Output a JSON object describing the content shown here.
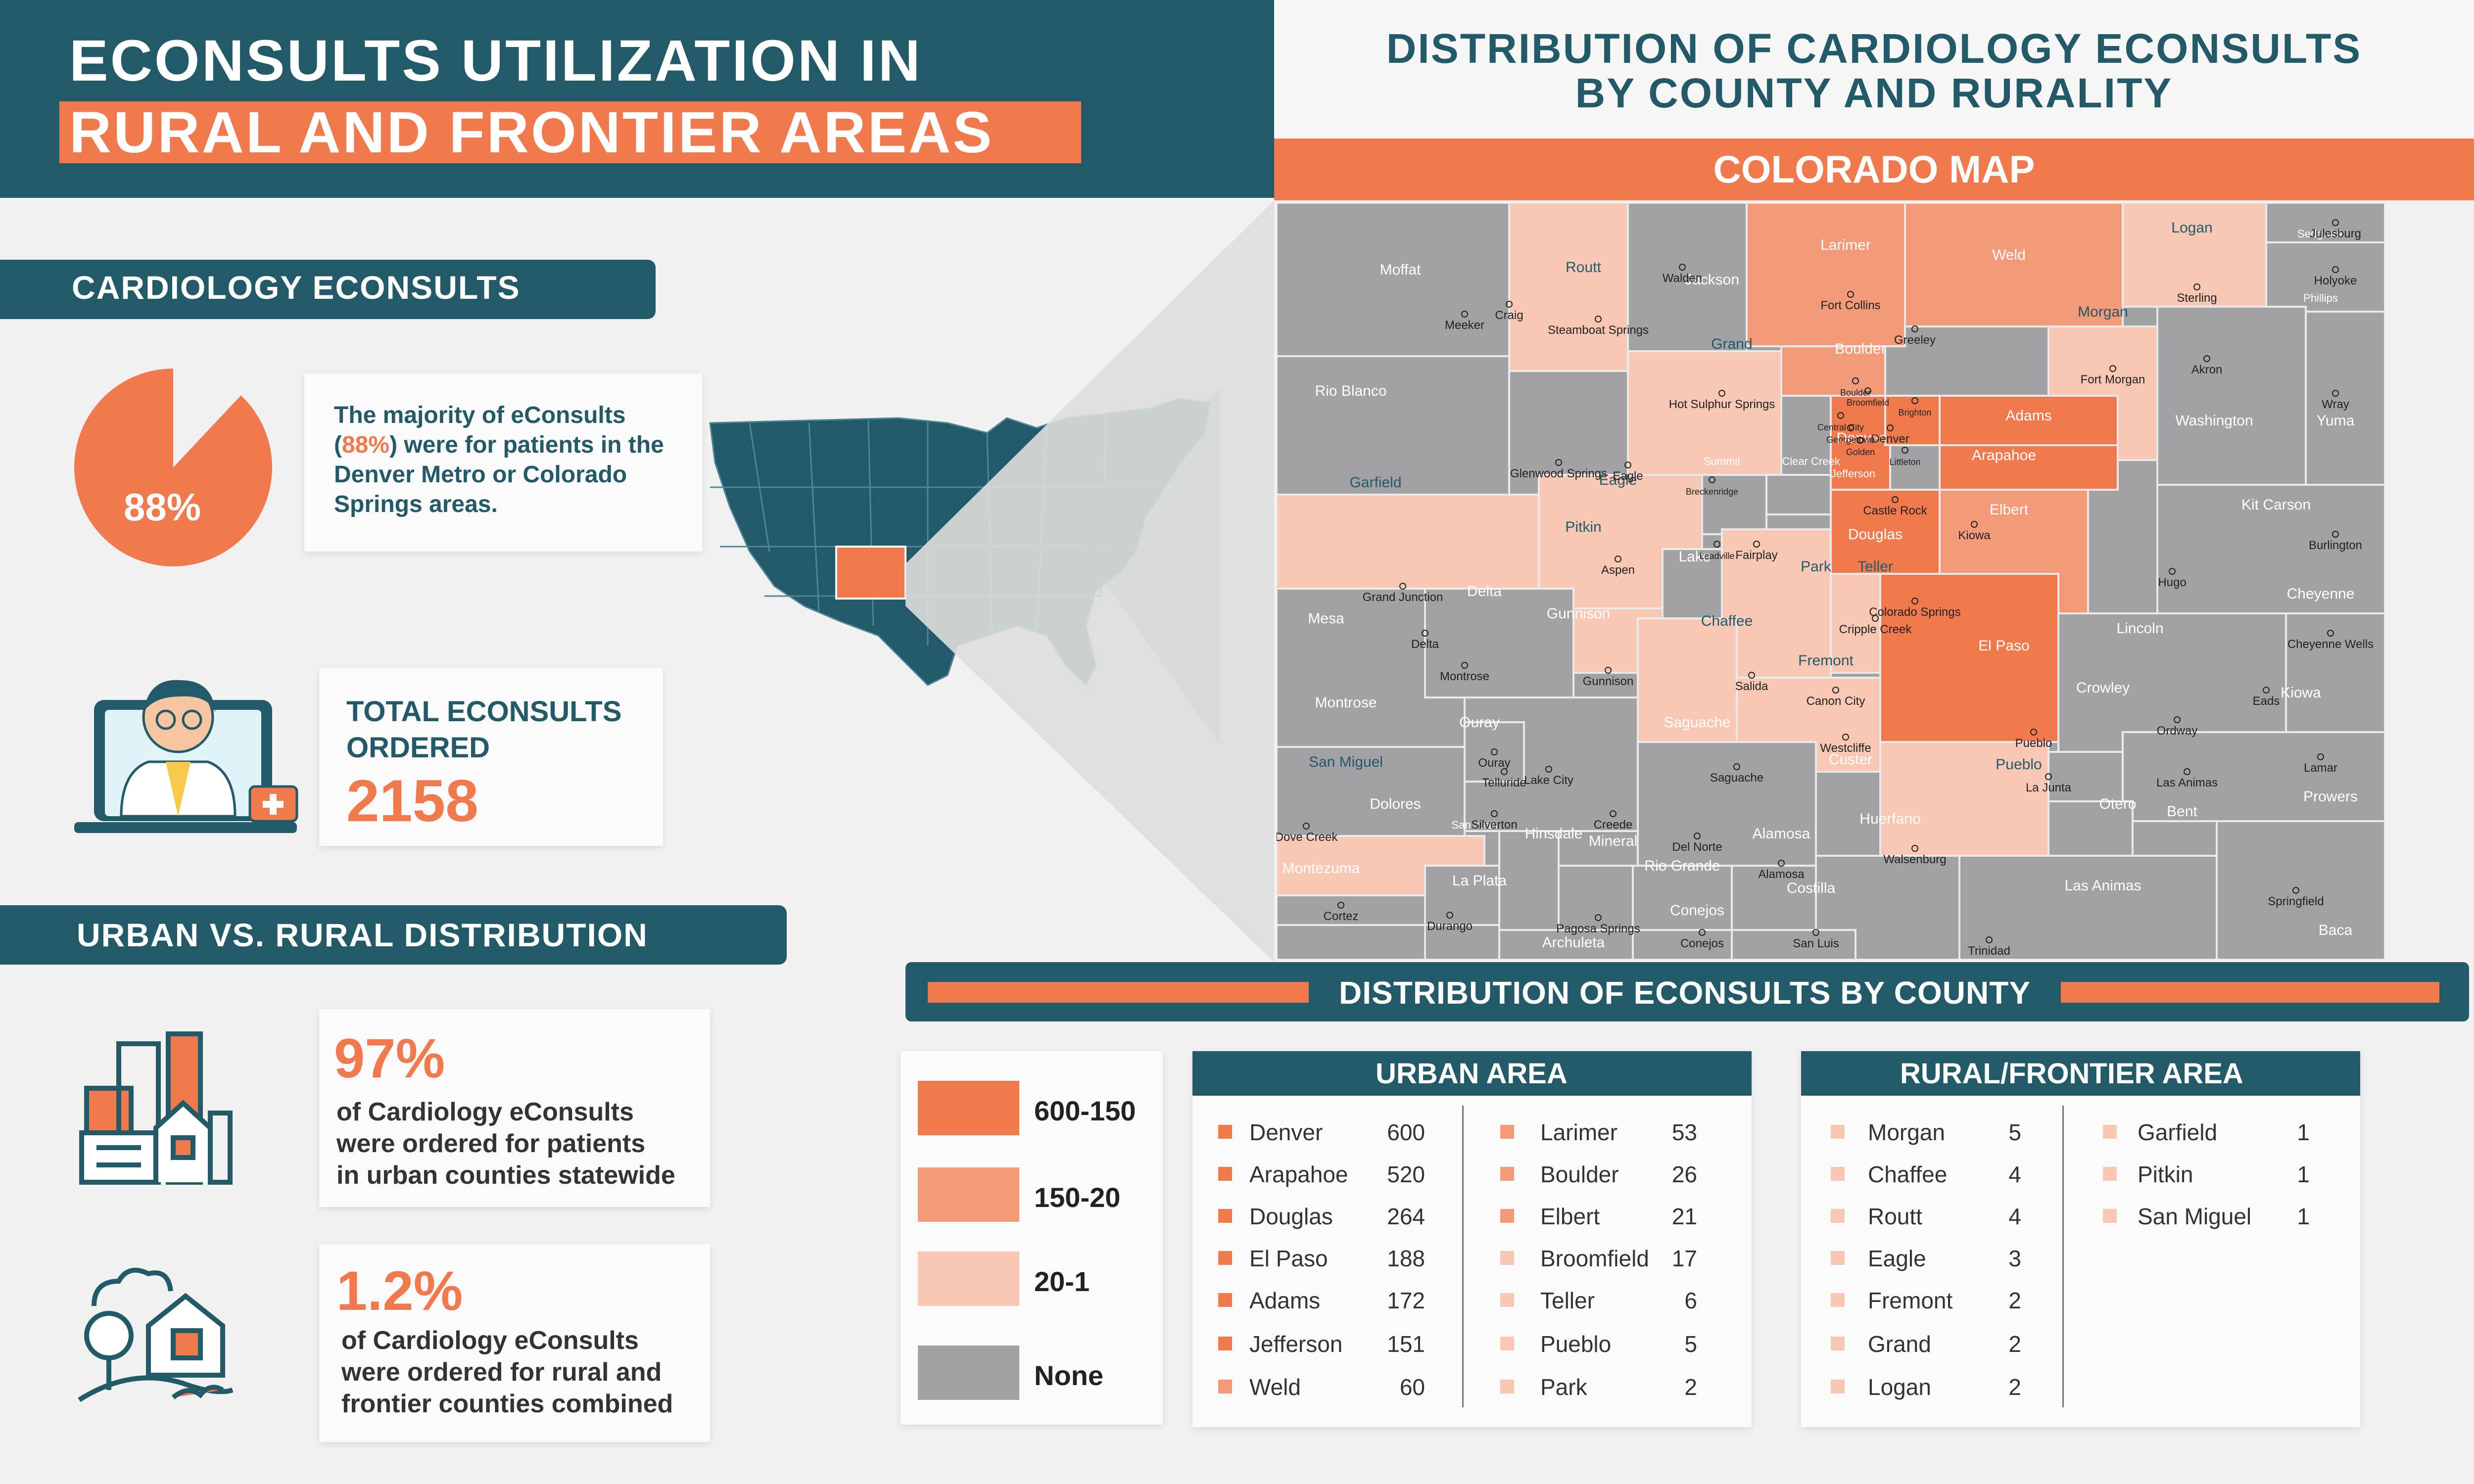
{
  "header": {
    "title_line1": "ECONSULTS UTILIZATION IN",
    "title_line2": "RURAL AND FRONTIER AREAS",
    "map_title_line1": "DISTRIBUTION OF CARDIOLOGY ECONSULTS",
    "map_title_line2": "BY COUNTY AND RURALITY",
    "map_banner": "COLORADO MAP"
  },
  "cardiology": {
    "heading": "CARDIOLOGY ECONSULTS",
    "pie_label": "88%",
    "pie_fraction": 0.88,
    "text_before": "The majority of eConsults (",
    "text_pct": "88%",
    "text_after": ") were for patients in the Denver Metro or Colorado Springs areas.",
    "total_label_line1": "TOTAL ECONSULTS",
    "total_label_line2": "ORDERED",
    "total_value": "2158"
  },
  "distribution": {
    "heading": "URBAN VS. RURAL DISTRIBUTION",
    "urban_pct": "97%",
    "urban_text_line1": "of Cardiology eConsults",
    "urban_text_line2": "were ordered for patients",
    "urban_text_line3": "in urban counties statewide",
    "rural_pct": "1.2%",
    "rural_text_line1": "of Cardiology eConsults",
    "rural_text_line2": "were ordered for rural and",
    "rural_text_line3": "frontier counties combined"
  },
  "county_section": {
    "banner": "DISTRIBUTION OF ECONSULTS BY COUNTY",
    "urban_heading": "URBAN AREA",
    "rural_heading": "RURAL/FRONTIER AREA"
  },
  "legend": [
    {
      "label": "600-150",
      "color": "#f07a4e"
    },
    {
      "label": "150-20",
      "color": "#f39a78"
    },
    {
      "label": "20-1",
      "color": "#f8c8b5"
    },
    {
      "label": "None",
      "color": "#a2a2a5"
    }
  ],
  "urban_left": [
    {
      "name": "Denver",
      "value": "600",
      "color": "#f07a4e"
    },
    {
      "name": "Arapahoe",
      "value": "520",
      "color": "#f07a4e"
    },
    {
      "name": "Douglas",
      "value": "264",
      "color": "#f07a4e"
    },
    {
      "name": "El Paso",
      "value": "188",
      "color": "#f07a4e"
    },
    {
      "name": "Adams",
      "value": "172",
      "color": "#f07a4e"
    },
    {
      "name": "Jefferson",
      "value": "151",
      "color": "#f07a4e"
    },
    {
      "name": "Weld",
      "value": "60",
      "color": "#f39a78"
    }
  ],
  "urban_right": [
    {
      "name": "Larimer",
      "value": "53",
      "color": "#f39a78"
    },
    {
      "name": "Boulder",
      "value": "26",
      "color": "#f39a78"
    },
    {
      "name": "Elbert",
      "value": "21",
      "color": "#f39a78"
    },
    {
      "name": "Broomfield",
      "value": "17",
      "color": "#f8c8b5"
    },
    {
      "name": "Teller",
      "value": "6",
      "color": "#f8c8b5"
    },
    {
      "name": "Pueblo",
      "value": "5",
      "color": "#f8c8b5"
    },
    {
      "name": "Park",
      "value": "2",
      "color": "#f8c8b5"
    }
  ],
  "rural_left": [
    {
      "name": "Morgan",
      "value": "5",
      "color": "#f8c8b5"
    },
    {
      "name": "Chaffee",
      "value": "4",
      "color": "#f8c8b5"
    },
    {
      "name": "Routt",
      "value": "4",
      "color": "#f8c8b5"
    },
    {
      "name": "Eagle",
      "value": "3",
      "color": "#f8c8b5"
    },
    {
      "name": "Fremont",
      "value": "2",
      "color": "#f8c8b5"
    },
    {
      "name": "Grand",
      "value": "2",
      "color": "#f8c8b5"
    },
    {
      "name": "Logan",
      "value": "2",
      "color": "#f8c8b5"
    }
  ],
  "rural_right": [
    {
      "name": "Garfield",
      "value": "1",
      "color": "#f8c8b5"
    },
    {
      "name": "Pitkin",
      "value": "1",
      "color": "#f8c8b5"
    },
    {
      "name": "San Miguel",
      "value": "1",
      "color": "#f8c8b5"
    }
  ],
  "map_counties": [
    {
      "name": "Moffat",
      "fill": "#a2a2a5"
    },
    {
      "name": "Routt",
      "fill": "#f8c8b5"
    },
    {
      "name": "Jackson",
      "fill": "#a2a2a5"
    },
    {
      "name": "Larimer",
      "fill": "#f39a78"
    },
    {
      "name": "Weld",
      "fill": "#f39a78"
    },
    {
      "name": "Logan",
      "fill": "#f8c8b5"
    },
    {
      "name": "Sedgwick",
      "fill": "#a2a2a5"
    },
    {
      "name": "Phillips",
      "fill": "#a2a2a5"
    },
    {
      "name": "Rio Blanco",
      "fill": "#a2a2a5"
    },
    {
      "name": "Grand",
      "fill": "#f8c8b5"
    },
    {
      "name": "Boulder",
      "fill": "#f39a78"
    },
    {
      "name": "Morgan",
      "fill": "#f8c8b5"
    },
    {
      "name": "Washington",
      "fill": "#a2a2a5"
    },
    {
      "name": "Yuma",
      "fill": "#a2a2a5"
    },
    {
      "name": "Garfield",
      "fill": "#f8c8b5"
    },
    {
      "name": "Eagle",
      "fill": "#f8c8b5"
    },
    {
      "name": "Summit",
      "fill": "#a2a2a5"
    },
    {
      "name": "Clear Creek",
      "fill": "#a2a2a5"
    },
    {
      "name": "Jefferson",
      "fill": "#f07a4e"
    },
    {
      "name": "Denver",
      "fill": "#f07a4e"
    },
    {
      "name": "Adams",
      "fill": "#f07a4e"
    },
    {
      "name": "Arapahoe",
      "fill": "#f07a4e"
    },
    {
      "name": "Douglas",
      "fill": "#f07a4e"
    },
    {
      "name": "Elbert",
      "fill": "#f39a78"
    },
    {
      "name": "Kit Carson",
      "fill": "#a2a2a5"
    },
    {
      "name": "Mesa",
      "fill": "#a2a2a5"
    },
    {
      "name": "Pitkin",
      "fill": "#f8c8b5"
    },
    {
      "name": "Lake",
      "fill": "#a2a2a5"
    },
    {
      "name": "Park",
      "fill": "#f8c8b5"
    },
    {
      "name": "Teller",
      "fill": "#f8c8b5"
    },
    {
      "name": "El Paso",
      "fill": "#f07a4e"
    },
    {
      "name": "Lincoln",
      "fill": "#a2a2a5"
    },
    {
      "name": "Cheyenne",
      "fill": "#a2a2a5"
    },
    {
      "name": "Delta",
      "fill": "#a2a2a5"
    },
    {
      "name": "Gunnison",
      "fill": "#a2a2a5"
    },
    {
      "name": "Chaffee",
      "fill": "#f8c8b5"
    },
    {
      "name": "Fremont",
      "fill": "#f8c8b5"
    },
    {
      "name": "Pueblo",
      "fill": "#f8c8b5"
    },
    {
      "name": "Crowley",
      "fill": "#a2a2a5"
    },
    {
      "name": "Kiowa",
      "fill": "#a2a2a5"
    },
    {
      "name": "Montrose",
      "fill": "#a2a2a5"
    },
    {
      "name": "Ouray",
      "fill": "#a2a2a5"
    },
    {
      "name": "San Miguel",
      "fill": "#f8c8b5"
    },
    {
      "name": "Saguache",
      "fill": "#a2a2a5"
    },
    {
      "name": "Custer",
      "fill": "#a2a2a5"
    },
    {
      "name": "Otero",
      "fill": "#a2a2a5"
    },
    {
      "name": "Bent",
      "fill": "#a2a2a5"
    },
    {
      "name": "Prowers",
      "fill": "#a2a2a5"
    },
    {
      "name": "Dolores",
      "fill": "#a2a2a5"
    },
    {
      "name": "San Juan",
      "fill": "#a2a2a5"
    },
    {
      "name": "Hinsdale",
      "fill": "#a2a2a5"
    },
    {
      "name": "Mineral",
      "fill": "#a2a2a5"
    },
    {
      "name": "Rio Grande",
      "fill": "#a2a2a5"
    },
    {
      "name": "Alamosa",
      "fill": "#a2a2a5"
    },
    {
      "name": "Huerfano",
      "fill": "#a2a2a5"
    },
    {
      "name": "Montezuma",
      "fill": "#a2a2a5"
    },
    {
      "name": "La Plata",
      "fill": "#a2a2a5"
    },
    {
      "name": "Archuleta",
      "fill": "#a2a2a5"
    },
    {
      "name": "Conejos",
      "fill": "#a2a2a5"
    },
    {
      "name": "Costilla",
      "fill": "#a2a2a5"
    },
    {
      "name": "Las Animas",
      "fill": "#a2a2a5"
    },
    {
      "name": "Baca",
      "fill": "#a2a2a5"
    }
  ],
  "map_cities": [
    "Walden",
    "Craig",
    "Steamboat Springs",
    "Fort Collins",
    "Greeley",
    "Sterling",
    "Julesburg",
    "Holyoke",
    "Meeker",
    "Hot Sulphur Springs",
    "Boulder",
    "Broomfield",
    "Brighton",
    "Central City",
    "Georgetown",
    "Golden",
    "Denver",
    "Littleton",
    "Fort Morgan",
    "Akron",
    "Wray",
    "Glenwood Springs",
    "Eagle",
    "Breckenridge",
    "Castle Rock",
    "Kiowa",
    "Burlington",
    "Grand Junction",
    "Aspen",
    "Leadville",
    "Fairplay",
    "Hugo",
    "Delta",
    "Cripple Creek",
    "Colorado Springs",
    "Cheyenne Wells",
    "Montrose",
    "Gunnison",
    "Salida",
    "Canon City",
    "Eads",
    "Ordway",
    "Pueblo",
    "Westcliffe",
    "La Junta",
    "Las Animas",
    "Lamar",
    "Ouray",
    "Telluride",
    "Lake City",
    "Saguache",
    "Dove Creek",
    "Silverton",
    "Creede",
    "Del Norte",
    "Alamosa",
    "Walsenburg",
    "Cortez",
    "Durango",
    "Pagosa Springs",
    "Conejos",
    "San Luis",
    "Trinidad",
    "Springfield"
  ]
}
